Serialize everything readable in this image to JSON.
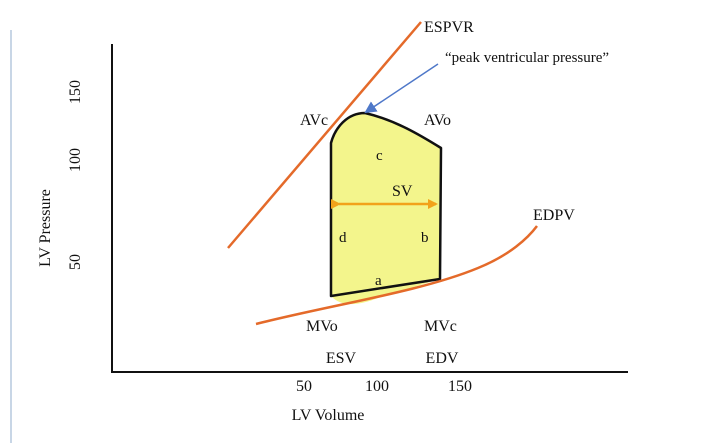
{
  "axes": {
    "xlabel": "LV Volume",
    "ylabel": "LV Pressure",
    "xticks": [
      "50",
      "100",
      "150"
    ],
    "yticks": [
      "50",
      "100",
      "150"
    ]
  },
  "curves": {
    "espvr_label": "ESPVR",
    "edpv_label": "EDPV"
  },
  "annotation": {
    "peak_text": "“peak ventricular pressure”"
  },
  "loop": {
    "corners": {
      "avc": "AVc",
      "avo": "AVo",
      "mvo": "MVo",
      "mvc": "MVc"
    },
    "phases": {
      "a": "a",
      "b": "b",
      "c": "c",
      "d": "d"
    },
    "sv_label": "SV"
  },
  "volume_labels": {
    "esv": "ESV",
    "edv": "EDV"
  },
  "colors": {
    "fill": "#f3f58c",
    "loop_stroke": "#111111",
    "curve": "#e46a2a",
    "sv_arrow": "#f2a21a",
    "annotation_arrow": "#4f78c9",
    "axis": "#111111",
    "left_rule": "#c8d6e6"
  }
}
